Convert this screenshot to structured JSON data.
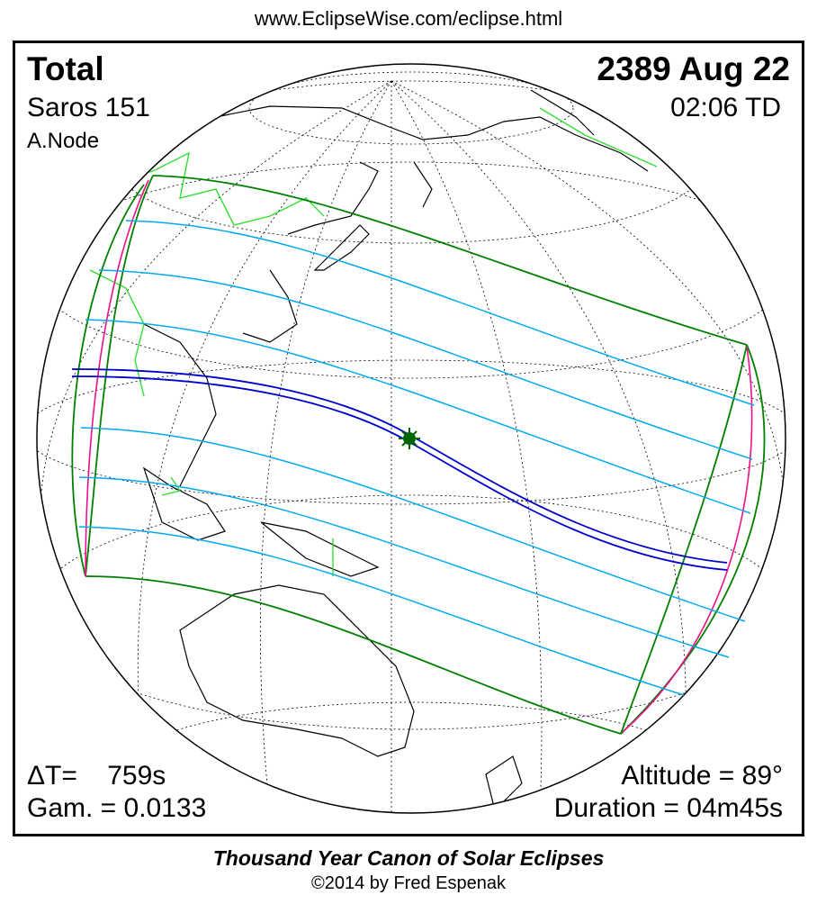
{
  "header_url": "www.EclipseWise.com/eclipse.html",
  "eclipse": {
    "type": "Total",
    "saros": "Saros 151",
    "node": "A.Node",
    "date": "2389 Aug 22",
    "time": "02:06 TD",
    "delta_t": "ΔT=    759s",
    "gamma": "Gam. = 0.0133",
    "altitude": "Altitude = 89°",
    "duration": "Duration = 04m45s"
  },
  "footer": {
    "title": "Thousand Year Canon of Solar Eclipses",
    "copyright": "©2014 by Fred Espenak"
  },
  "colors": {
    "penumbral_limits": "#008000",
    "magnitude_lines": "#00aaee",
    "central_path": "#0000cc",
    "rise_set_curves": "#ee1188",
    "country_borders": "#33dd33",
    "coastlines": "#000000"
  },
  "icons": {
    "greatest_eclipse": "sun-star-icon"
  }
}
